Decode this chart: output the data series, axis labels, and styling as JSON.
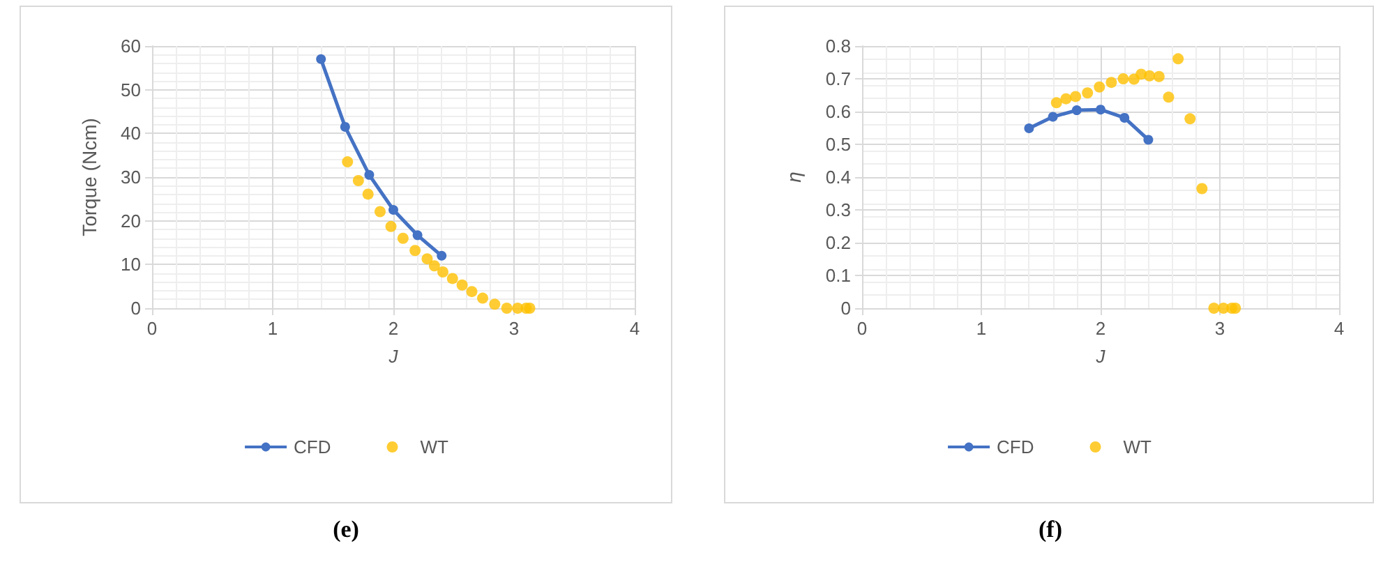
{
  "chart_data": [
    {
      "type": "line",
      "xlabel": "J",
      "ylabel": "Torque (Ncm)",
      "annotations": [
        "(e)"
      ],
      "xlim": [
        0,
        4
      ],
      "xticks": [
        0,
        1,
        2,
        3,
        4
      ],
      "ylim": [
        0,
        60
      ],
      "yticks": [
        0,
        10,
        20,
        30,
        40,
        50,
        60
      ],
      "grid": true,
      "legend": "bottom",
      "marker": "circle",
      "series": [
        {
          "name": "CFD",
          "color": "#4472c4",
          "x": [
            1.4,
            1.6,
            1.8,
            2.0,
            2.2,
            2.4
          ],
          "values": [
            57,
            41.5,
            30.5,
            22.5,
            16.7,
            12
          ]
        },
        {
          "name": "WT",
          "type": "scatter",
          "color": "#ffc000",
          "x": [
            1.62,
            1.71,
            1.79,
            1.89,
            1.98,
            2.08,
            2.18,
            2.28,
            2.34,
            2.41,
            2.49,
            2.57,
            2.65,
            2.74,
            2.84,
            2.94,
            3.03,
            3.1,
            3.13
          ],
          "values": [
            33.5,
            29.2,
            26.1,
            22.1,
            18.7,
            16.0,
            13.2,
            11.3,
            9.7,
            8.3,
            6.8,
            5.3,
            3.8,
            2.3,
            0.9,
            0,
            0,
            0,
            0
          ]
        }
      ]
    },
    {
      "type": "line",
      "xlabel": "J",
      "ylabel": "η",
      "annotations": [
        "(f)"
      ],
      "xlim": [
        0,
        4
      ],
      "xticks": [
        0,
        1,
        2,
        3,
        4
      ],
      "ylim": [
        0,
        0.8
      ],
      "yticks": [
        0,
        0.1,
        0.2,
        0.3,
        0.4,
        0.5,
        0.6,
        0.7,
        0.8
      ],
      "grid": true,
      "legend": "bottom",
      "marker": "circle",
      "series": [
        {
          "name": "CFD",
          "color": "#4472c4",
          "x": [
            1.4,
            1.6,
            1.8,
            2.0,
            2.2,
            2.4
          ],
          "values": [
            0.549,
            0.584,
            0.604,
            0.606,
            0.581,
            0.514
          ]
        },
        {
          "name": "WT",
          "type": "scatter",
          "color": "#ffc000",
          "x": [
            1.63,
            1.71,
            1.79,
            1.89,
            1.99,
            2.09,
            2.19,
            2.28,
            2.34,
            2.41,
            2.49,
            2.57,
            2.65,
            2.75,
            2.85,
            2.95,
            3.03,
            3.1,
            3.13
          ],
          "values": [
            0.627,
            0.639,
            0.646,
            0.657,
            0.675,
            0.689,
            0.7,
            0.699,
            0.714,
            0.709,
            0.707,
            0.644,
            0.761,
            0.578,
            0.365,
            0,
            0,
            0,
            0
          ]
        }
      ]
    }
  ]
}
